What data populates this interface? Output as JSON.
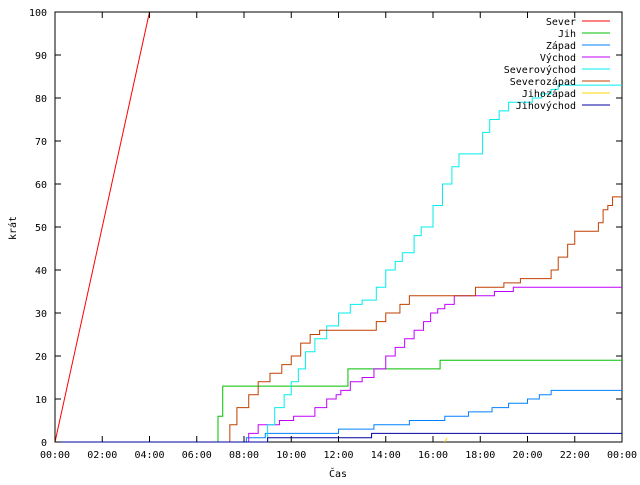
{
  "chart_data": {
    "type": "line",
    "title": "",
    "xlabel": "Čas",
    "ylabel": "krát",
    "xlim": [
      0,
      24
    ],
    "ylim": [
      0,
      100
    ],
    "grid": false,
    "legend_position": "top-right",
    "x_ticks": [
      {
        "value": 0,
        "label": "00:00"
      },
      {
        "value": 2,
        "label": "02:00"
      },
      {
        "value": 4,
        "label": "04:00"
      },
      {
        "value": 6,
        "label": "06:00"
      },
      {
        "value": 8,
        "label": "08:00"
      },
      {
        "value": 10,
        "label": "10:00"
      },
      {
        "value": 12,
        "label": "12:00"
      },
      {
        "value": 14,
        "label": "14:00"
      },
      {
        "value": 16,
        "label": "16:00"
      },
      {
        "value": 18,
        "label": "18:00"
      },
      {
        "value": 20,
        "label": "20:00"
      },
      {
        "value": 22,
        "label": "22:00"
      },
      {
        "value": 24,
        "label": "00:00"
      }
    ],
    "y_ticks": [
      {
        "value": 0,
        "label": "0"
      },
      {
        "value": 10,
        "label": "10"
      },
      {
        "value": 20,
        "label": "20"
      },
      {
        "value": 30,
        "label": "30"
      },
      {
        "value": 40,
        "label": "40"
      },
      {
        "value": 50,
        "label": "50"
      },
      {
        "value": 60,
        "label": "60"
      },
      {
        "value": 70,
        "label": "70"
      },
      {
        "value": 80,
        "label": "80"
      },
      {
        "value": 90,
        "label": "90"
      },
      {
        "value": 100,
        "label": "100"
      }
    ],
    "series": [
      {
        "name": "Sever",
        "color": "#ff0000",
        "step": false,
        "points": [
          [
            0,
            0
          ],
          [
            4.0,
            100
          ]
        ]
      },
      {
        "name": "Jih",
        "color": "#00c000",
        "step": true,
        "points": [
          [
            0,
            0
          ],
          [
            6.6,
            0
          ],
          [
            6.9,
            6
          ],
          [
            7.1,
            13
          ],
          [
            12.3,
            13
          ],
          [
            12.4,
            17
          ],
          [
            16.2,
            17
          ],
          [
            16.3,
            19
          ],
          [
            24,
            19
          ]
        ]
      },
      {
        "name": "Západ",
        "color": "#0080ff",
        "step": true,
        "points": [
          [
            0,
            0
          ],
          [
            8.0,
            0
          ],
          [
            8.1,
            1
          ],
          [
            8.9,
            2
          ],
          [
            11.9,
            2
          ],
          [
            12.0,
            3
          ],
          [
            13.5,
            4
          ],
          [
            15.0,
            5
          ],
          [
            16.5,
            6
          ],
          [
            17.5,
            7
          ],
          [
            18.5,
            8
          ],
          [
            19.2,
            9
          ],
          [
            20.0,
            10
          ],
          [
            20.5,
            11
          ],
          [
            21.0,
            12
          ],
          [
            24,
            12
          ]
        ]
      },
      {
        "name": "Východ",
        "color": "#c000ff",
        "step": true,
        "points": [
          [
            0,
            0
          ],
          [
            8.0,
            0
          ],
          [
            8.2,
            2
          ],
          [
            8.6,
            4
          ],
          [
            9.5,
            5
          ],
          [
            10.1,
            6
          ],
          [
            11.0,
            8
          ],
          [
            11.5,
            10
          ],
          [
            11.9,
            11
          ],
          [
            12.1,
            12
          ],
          [
            12.5,
            14
          ],
          [
            13.0,
            15
          ],
          [
            13.5,
            17
          ],
          [
            14.0,
            20
          ],
          [
            14.4,
            22
          ],
          [
            14.8,
            24
          ],
          [
            15.2,
            26
          ],
          [
            15.6,
            28
          ],
          [
            15.9,
            30
          ],
          [
            16.2,
            31
          ],
          [
            16.5,
            32
          ],
          [
            16.9,
            34
          ],
          [
            18.5,
            34
          ],
          [
            18.6,
            35
          ],
          [
            19.4,
            36
          ],
          [
            24,
            36
          ]
        ]
      },
      {
        "name": "Severovýchod",
        "color": "#00eeee",
        "step": true,
        "points": [
          [
            0,
            0
          ],
          [
            8.7,
            0
          ],
          [
            9.0,
            4
          ],
          [
            9.3,
            8
          ],
          [
            9.7,
            11
          ],
          [
            10.0,
            14
          ],
          [
            10.3,
            17
          ],
          [
            10.6,
            21
          ],
          [
            11.0,
            24
          ],
          [
            11.5,
            27
          ],
          [
            12.0,
            30
          ],
          [
            12.5,
            32
          ],
          [
            13.0,
            33
          ],
          [
            13.6,
            36
          ],
          [
            14.0,
            40
          ],
          [
            14.4,
            42
          ],
          [
            14.7,
            44
          ],
          [
            15.2,
            48
          ],
          [
            15.5,
            50
          ],
          [
            16.0,
            55
          ],
          [
            16.4,
            60
          ],
          [
            16.8,
            64
          ],
          [
            17.1,
            67
          ],
          [
            17.9,
            67
          ],
          [
            18.1,
            72
          ],
          [
            18.4,
            75
          ],
          [
            18.8,
            77
          ],
          [
            19.2,
            79
          ],
          [
            20.0,
            79
          ],
          [
            20.2,
            80
          ],
          [
            20.6,
            81
          ],
          [
            21.0,
            82
          ],
          [
            21.3,
            83
          ],
          [
            24,
            83
          ]
        ]
      },
      {
        "name": "Severozápad",
        "color": "#c04000",
        "step": true,
        "points": [
          [
            0,
            0
          ],
          [
            7.2,
            0
          ],
          [
            7.4,
            4
          ],
          [
            7.7,
            8
          ],
          [
            8.2,
            11
          ],
          [
            8.6,
            14
          ],
          [
            9.1,
            16
          ],
          [
            9.6,
            18
          ],
          [
            10.0,
            20
          ],
          [
            10.4,
            23
          ],
          [
            10.8,
            25
          ],
          [
            11.2,
            26
          ],
          [
            13.4,
            26
          ],
          [
            13.6,
            28
          ],
          [
            14.0,
            30
          ],
          [
            14.6,
            32
          ],
          [
            15.0,
            34
          ],
          [
            15.7,
            34
          ],
          [
            16.0,
            34
          ],
          [
            17.6,
            34
          ],
          [
            17.8,
            36
          ],
          [
            18.6,
            36
          ],
          [
            19.0,
            37
          ],
          [
            19.7,
            38
          ],
          [
            20.8,
            38
          ],
          [
            21.0,
            40
          ],
          [
            21.3,
            43
          ],
          [
            21.7,
            46
          ],
          [
            22.0,
            49
          ],
          [
            22.9,
            49
          ],
          [
            23.0,
            51
          ],
          [
            23.2,
            54
          ],
          [
            23.4,
            55
          ],
          [
            23.6,
            57
          ],
          [
            24,
            57
          ]
        ]
      },
      {
        "name": "Jihozápad",
        "color": "#ffd700",
        "step": false,
        "points": [
          [
            16.5,
            0
          ],
          [
            16.6,
            1
          ]
        ]
      },
      {
        "name": "Jihovýchod",
        "color": "#0000a0",
        "step": true,
        "points": [
          [
            0,
            0
          ],
          [
            8.8,
            0
          ],
          [
            9.0,
            1
          ],
          [
            13.3,
            1
          ],
          [
            13.4,
            2
          ],
          [
            24,
            2
          ]
        ]
      }
    ]
  }
}
